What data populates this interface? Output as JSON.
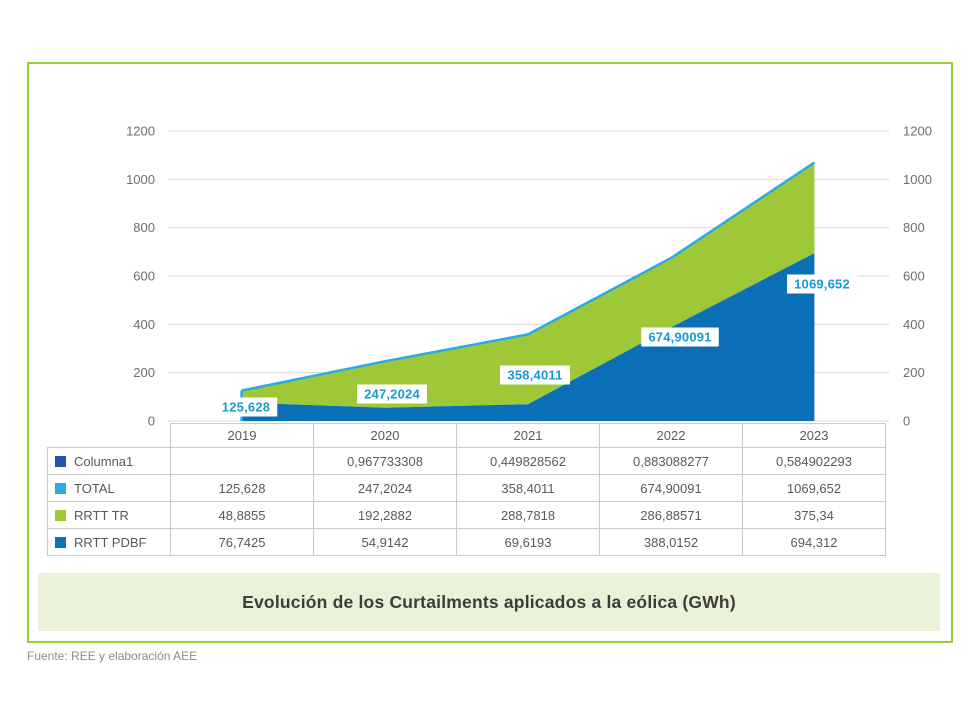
{
  "title_banner": "Evolución de los Curtailments aplicados a la eólica (GWh)",
  "source_note": "Fuente: REE y elaboración AEE",
  "colors": {
    "frame_border": "#9CCB3B",
    "banner_bg": "#E9F1D8",
    "gridline": "#D7D8D9",
    "axis_text": "#6D6E71",
    "data_label_text": "#1799D8",
    "area_rrtt_tr": "#9FC838",
    "area_rrtt_pdbf": "#0A6FB6",
    "total_line": "#29ABE2"
  },
  "chart_data": {
    "type": "area",
    "stacked": true,
    "title": "Evolución de los Curtailments aplicados a la eólica (GWh)",
    "xlabel": "",
    "ylabel": "",
    "ylim": [
      0,
      1200
    ],
    "yticks": [
      0,
      200,
      400,
      600,
      800,
      1000,
      1200
    ],
    "grid": true,
    "dual_y_axis": true,
    "categories": [
      "2019",
      "2020",
      "2021",
      "2022",
      "2023"
    ],
    "series": [
      {
        "name": "Columna1",
        "type": "line",
        "color": "#1F5AA8",
        "values": [
          null,
          0.967733308,
          0.449828562,
          0.883088277,
          0.584902293
        ]
      },
      {
        "name": "TOTAL",
        "type": "line",
        "color": "#29ABE2",
        "values": [
          125.628,
          247.2024,
          358.4011,
          674.90091,
          1069.652
        ]
      },
      {
        "name": "RRTT TR",
        "type": "area",
        "color": "#9FC838",
        "values": [
          48.8855,
          192.2882,
          288.7818,
          286.88571,
          375.34
        ]
      },
      {
        "name": "RRTT PDBF",
        "type": "area",
        "color": "#0A6FB6",
        "values": [
          76.7425,
          54.9142,
          69.6193,
          388.0152,
          694.312
        ]
      }
    ],
    "data_labels": [
      "125,628",
      "247,2024",
      "358,4011",
      "674,90091",
      "1069,652"
    ]
  },
  "table": {
    "header": [
      "",
      "2019",
      "2020",
      "2021",
      "2022",
      "2023"
    ],
    "rows": [
      {
        "label": "Columna1",
        "swatch": "#1F5AA8",
        "values": [
          "",
          "0,967733308",
          "0,449828562",
          "0,883088277",
          "0,584902293"
        ]
      },
      {
        "label": "TOTAL",
        "swatch": "#29ABE2",
        "values": [
          "125,628",
          "247,2024",
          "358,4011",
          "674,90091",
          "1069,652"
        ]
      },
      {
        "label": "RRTT TR",
        "swatch": "#A2C82F",
        "values": [
          "48,8855",
          "192,2882",
          "288,7818",
          "286,88571",
          "375,34"
        ]
      },
      {
        "label": "RRTT PDBF",
        "swatch": "#0B72BC",
        "values": [
          "76,7425",
          "54,9142",
          "69,6193",
          "388,0152",
          "694,312"
        ]
      }
    ]
  }
}
